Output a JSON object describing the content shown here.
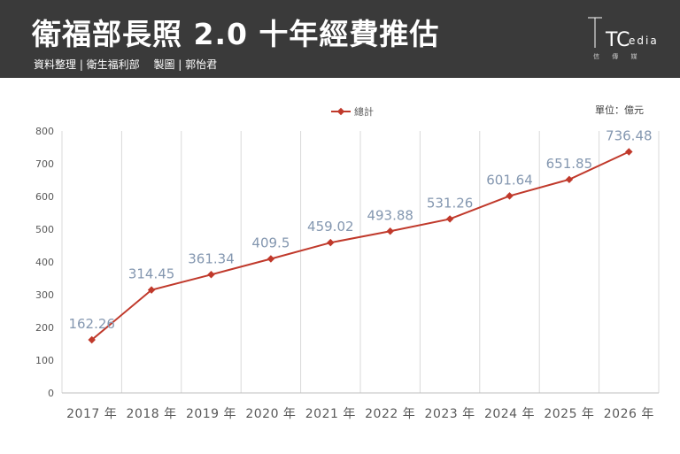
{
  "header": {
    "title": "衛福部長照 2.0 十年經費推估",
    "subtitle": "資料整理 | 衛生福利部　 製圖 | 郭怡君"
  },
  "logo": {
    "initials": "TC",
    "word": "edia",
    "caption": "信 傳 媒"
  },
  "colors": {
    "header_bg": "#3a3a3a",
    "series": "#c0392b",
    "data_label": "#8497b0",
    "grid": "#d9d9d9"
  },
  "chart_data": {
    "type": "line",
    "title": "",
    "unit_label": "單位：億元",
    "legend": [
      "總計"
    ],
    "legend_position": "top-center",
    "categories": [
      "2017 年",
      "2018 年",
      "2019 年",
      "2020 年",
      "2021 年",
      "2022 年",
      "2023 年",
      "2024 年",
      "2025 年",
      "2026 年"
    ],
    "series": [
      {
        "name": "總計",
        "values": [
          162.26,
          314.45,
          361.34,
          409.5,
          459.02,
          493.88,
          531.26,
          601.64,
          651.85,
          736.48
        ],
        "labels": [
          "162.26",
          "314.45",
          "361.34",
          "409.5",
          "459.02",
          "493.88",
          "531.26",
          "601.64",
          "651.85",
          "736.48"
        ]
      }
    ],
    "ylim": [
      0,
      800
    ],
    "yticks": [
      0,
      100,
      200,
      300,
      400,
      500,
      600,
      700,
      800
    ],
    "grid": "vertical"
  }
}
